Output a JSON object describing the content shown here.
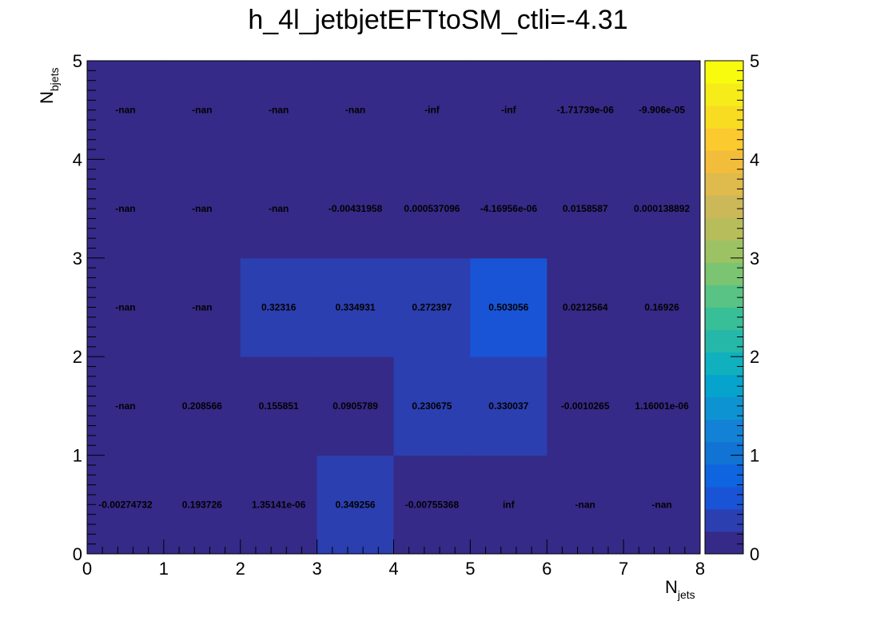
{
  "chart_data": {
    "type": "heatmap",
    "title": "h_4l_jetbjetEFTtoSM_ctli=-4.31",
    "xlabel": "N",
    "xlabel_sub": "jets",
    "ylabel": "N",
    "ylabel_sub": "bjets",
    "xlim": [
      0,
      8
    ],
    "ylim": [
      0,
      5
    ],
    "x_ticks": [
      "0",
      "1",
      "2",
      "3",
      "4",
      "5",
      "6",
      "7",
      "8"
    ],
    "y_ticks": [
      "0",
      "1",
      "2",
      "3",
      "4",
      "5"
    ],
    "zlim": [
      0,
      5
    ],
    "z_ticks": [
      "0",
      "1",
      "2",
      "3",
      "4",
      "5"
    ],
    "colormap": [
      "#352a87",
      "#2c3fb0",
      "#1954d6",
      "#0f64e0",
      "#1173d4",
      "#1381d6",
      "#0d93d2",
      "#06a3cc",
      "#10b0be",
      "#25b8a9",
      "#39bf97",
      "#58c385",
      "#7ac472",
      "#9cc264",
      "#b8bd5c",
      "#cbb858",
      "#dfba4c",
      "#f3bd3c",
      "#fbca2f",
      "#f8dc22",
      "#f6ec1a",
      "#f9fb0e"
    ],
    "cells": [
      [
        "-0.00274732",
        "0.193726",
        "1.35141e-06",
        "0.349256",
        "-0.00755368",
        "inf",
        "-nan",
        "-nan"
      ],
      [
        "-nan",
        "0.208566",
        "0.155851",
        "0.0905789",
        "0.230675",
        "0.330037",
        "-0.0010265",
        "1.16001e-06"
      ],
      [
        "-nan",
        "-nan",
        "0.32316",
        "0.334931",
        "0.272397",
        "0.503056",
        "0.0212564",
        "0.16926"
      ],
      [
        "-nan",
        "-nan",
        "-nan",
        "-0.00431958",
        "0.000537096",
        "-4.16956e-06",
        "0.0158587",
        "0.000138892"
      ],
      [
        "-nan",
        "-nan",
        "-nan",
        "-nan",
        "-inf",
        "-inf",
        "-1.71739e-06",
        "-9.906e-05"
      ]
    ]
  }
}
